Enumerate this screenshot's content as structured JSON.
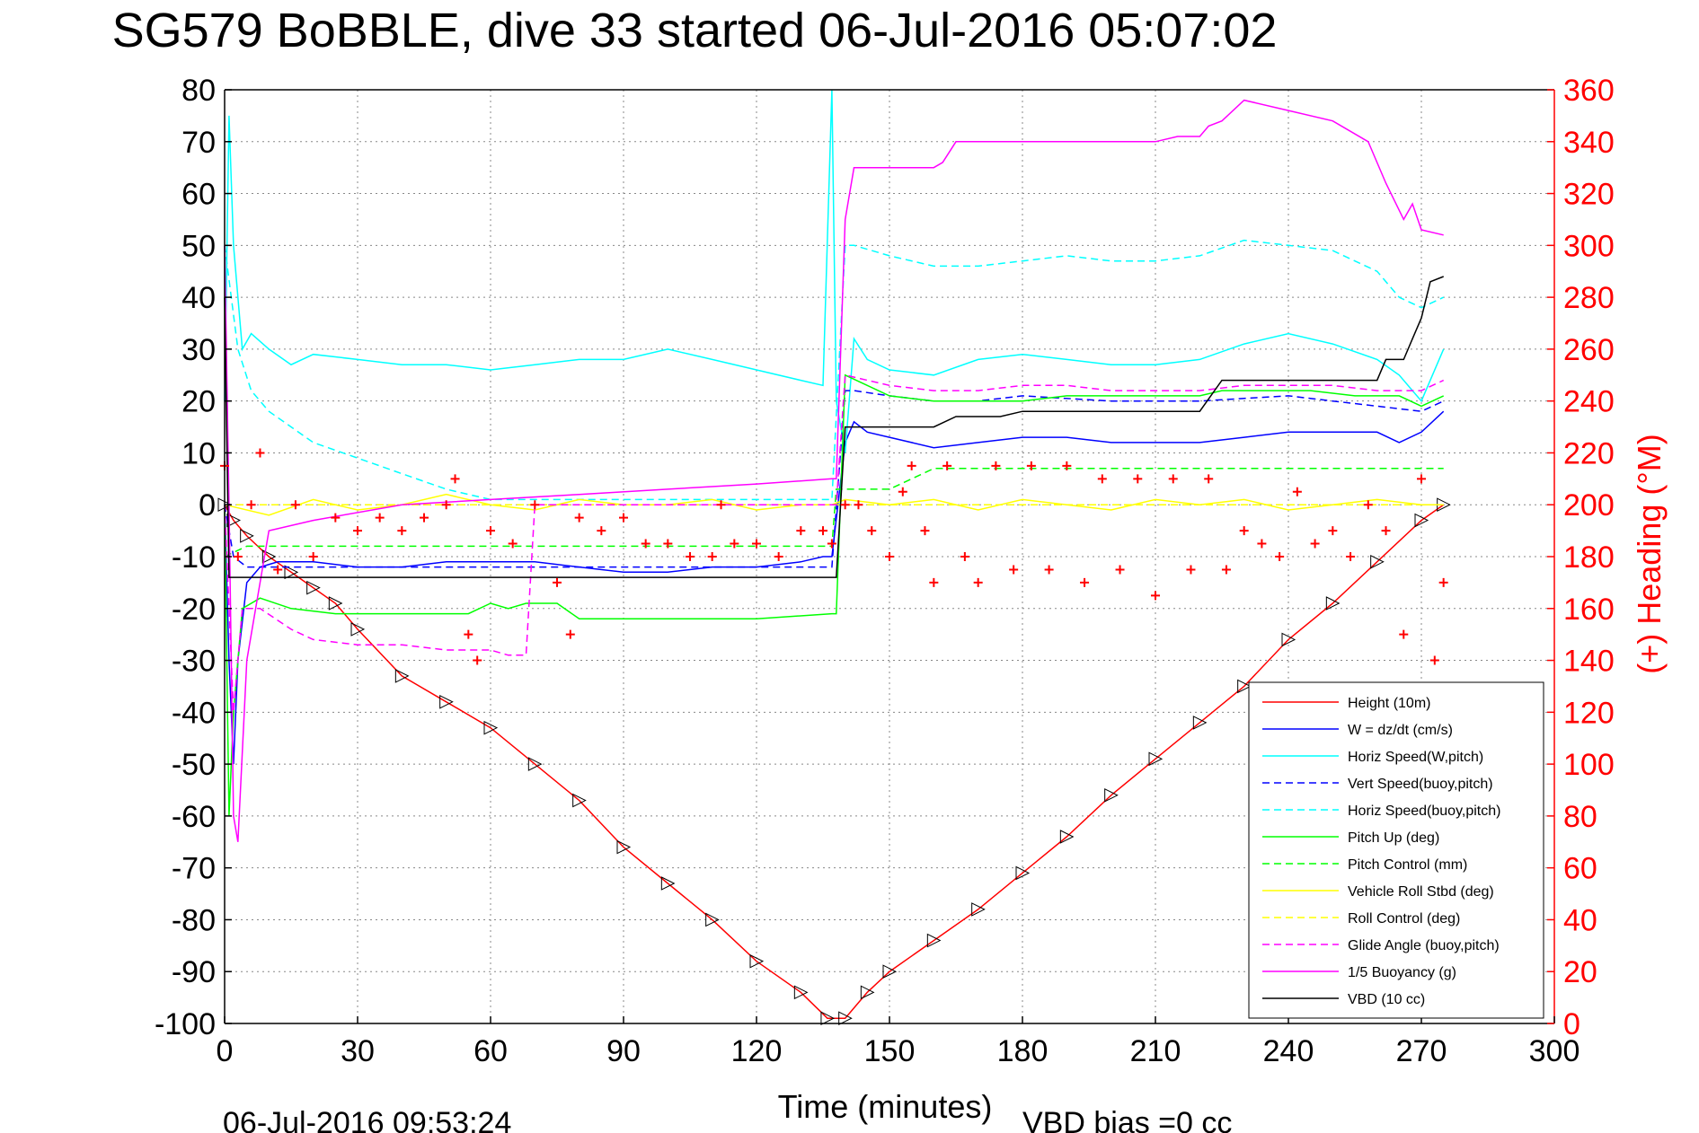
{
  "chart_data": {
    "type": "line",
    "title": "SG579 BoBBLE, dive 33 started 06-Jul-2016 05:07:02",
    "xlabel": "Time (minutes)",
    "ylabel": "",
    "y2label": "(+) Heading (°M)",
    "footer_left": "06-Jul-2016 09:53:24",
    "footer_right": "VBD bias =0 cc",
    "xlim": [
      0,
      300
    ],
    "ylim": [
      -100,
      80
    ],
    "y2lim": [
      0,
      360
    ],
    "xticks": [
      0,
      30,
      60,
      90,
      120,
      150,
      180,
      210,
      240,
      270,
      300
    ],
    "yticks": [
      -100,
      -90,
      -80,
      -70,
      -60,
      -50,
      -40,
      -30,
      -20,
      -10,
      0,
      10,
      20,
      30,
      40,
      50,
      60,
      70,
      80
    ],
    "y2ticks": [
      0,
      20,
      40,
      60,
      80,
      100,
      120,
      140,
      160,
      180,
      200,
      220,
      240,
      260,
      280,
      300,
      320,
      340,
      360
    ],
    "grid": true,
    "legend_position": "bottom-right",
    "colors": {
      "red": "#ff0000",
      "blue": "#0000ff",
      "cyan": "#00ffff",
      "green": "#00ff00",
      "yellow": "#ffff00",
      "magenta": "#ff00ff",
      "black": "#000000"
    },
    "series": [
      {
        "name": "Height (10m)",
        "color": "#ff0000",
        "style": "solid",
        "x": [
          0,
          2,
          5,
          10,
          15,
          20,
          25,
          30,
          40,
          50,
          60,
          70,
          80,
          90,
          100,
          110,
          120,
          130,
          136,
          140,
          145,
          150,
          160,
          170,
          180,
          190,
          200,
          210,
          220,
          230,
          240,
          250,
          260,
          270,
          275
        ],
        "y": [
          0,
          -3,
          -6,
          -10,
          -13,
          -16,
          -19,
          -24,
          -33,
          -38,
          -43,
          -50,
          -57,
          -66,
          -73,
          -80,
          -88,
          -94,
          -99,
          -99,
          -94,
          -90,
          -84,
          -78,
          -71,
          -64,
          -56,
          -49,
          -42,
          -35,
          -26,
          -19,
          -11,
          -3,
          0
        ]
      },
      {
        "name": "W = dz/dt (cm/s)",
        "color": "#0000ff",
        "style": "solid",
        "x": [
          0,
          1,
          2,
          3,
          5,
          8,
          12,
          20,
          30,
          40,
          50,
          60,
          70,
          80,
          90,
          100,
          110,
          120,
          130,
          135,
          137,
          140,
          142,
          145,
          150,
          160,
          170,
          180,
          190,
          200,
          210,
          220,
          230,
          240,
          250,
          260,
          265,
          270,
          275
        ],
        "y": [
          0,
          -30,
          -50,
          -30,
          -15,
          -12,
          -11,
          -11,
          -12,
          -12,
          -11,
          -11,
          -11,
          -12,
          -13,
          -13,
          -12,
          -12,
          -11,
          -10,
          -10,
          12,
          16,
          14,
          13,
          11,
          12,
          13,
          13,
          12,
          12,
          12,
          13,
          14,
          14,
          14,
          12,
          14,
          18
        ]
      },
      {
        "name": "Horiz Speed(W,pitch)",
        "color": "#00ffff",
        "style": "solid",
        "x": [
          0,
          1,
          2,
          4,
          6,
          10,
          15,
          20,
          30,
          40,
          50,
          60,
          70,
          80,
          90,
          100,
          110,
          120,
          130,
          135,
          137,
          138,
          140,
          142,
          145,
          150,
          160,
          170,
          180,
          190,
          200,
          210,
          220,
          230,
          240,
          250,
          260,
          265,
          270,
          275
        ],
        "y": [
          20,
          75,
          50,
          30,
          33,
          30,
          27,
          29,
          28,
          27,
          27,
          26,
          27,
          28,
          28,
          30,
          28,
          26,
          24,
          23,
          80,
          20,
          10,
          32,
          28,
          26,
          25,
          28,
          29,
          28,
          27,
          27,
          28,
          31,
          33,
          31,
          28,
          25,
          20,
          30
        ]
      },
      {
        "name": "Vert Speed(buoy,pitch)",
        "color": "#0000ff",
        "style": "dashed",
        "x": [
          0,
          2,
          5,
          10,
          20,
          40,
          60,
          80,
          100,
          120,
          137,
          140,
          142,
          150,
          160,
          170,
          180,
          200,
          220,
          240,
          250,
          260,
          270,
          275
        ],
        "y": [
          0,
          -10,
          -12,
          -12,
          -12,
          -12,
          -12,
          -12,
          -12,
          -12,
          -12,
          22,
          22,
          21,
          20,
          20,
          21,
          20,
          20,
          21,
          20,
          19,
          18,
          20
        ]
      },
      {
        "name": "Horiz Speed(buoy,pitch)",
        "color": "#00ffff",
        "style": "dashed",
        "x": [
          0,
          3,
          6,
          10,
          20,
          30,
          40,
          50,
          55,
          60,
          137,
          140,
          142,
          150,
          160,
          170,
          180,
          190,
          200,
          210,
          220,
          230,
          240,
          250,
          260,
          265,
          270,
          275
        ],
        "y": [
          50,
          30,
          22,
          18,
          12,
          9,
          6,
          3,
          2,
          1,
          1,
          50,
          50,
          48,
          46,
          46,
          47,
          48,
          47,
          47,
          48,
          51,
          50,
          49,
          45,
          40,
          38,
          40
        ]
      },
      {
        "name": "Pitch Up (deg)",
        "color": "#00ff00",
        "style": "solid",
        "x": [
          0,
          1,
          2,
          4,
          8,
          15,
          25,
          40,
          55,
          60,
          64,
          68,
          75,
          80,
          100,
          120,
          137,
          138,
          140,
          150,
          160,
          170,
          180,
          190,
          200,
          210,
          220,
          225,
          235,
          245,
          255,
          265,
          270,
          275
        ],
        "y": [
          0,
          -60,
          -40,
          -20,
          -18,
          -20,
          -21,
          -21,
          -21,
          -19,
          -20,
          -19,
          -19,
          -22,
          -22,
          -22,
          -21,
          -21,
          25,
          21,
          20,
          20,
          20,
          21,
          21,
          21,
          21,
          22,
          22,
          22,
          21,
          21,
          19,
          21
        ]
      },
      {
        "name": "Pitch Control (mm)",
        "color": "#00ff00",
        "style": "dashed",
        "x": [
          0,
          5,
          10,
          40,
          70,
          100,
          120,
          137,
          138,
          140,
          150,
          160,
          180,
          200,
          220,
          240,
          260,
          270,
          275
        ],
        "y": [
          -10,
          -8,
          -8,
          -8,
          -8,
          -8,
          -8,
          -8,
          3,
          3,
          3,
          7,
          7,
          7,
          7,
          7,
          7,
          7,
          7
        ]
      },
      {
        "name": "Vehicle Roll Stbd (deg)",
        "color": "#ffff00",
        "style": "solid",
        "x": [
          0,
          10,
          20,
          30,
          40,
          50,
          60,
          70,
          80,
          90,
          100,
          110,
          120,
          130,
          137,
          140,
          150,
          160,
          170,
          180,
          190,
          200,
          210,
          220,
          230,
          240,
          250,
          260,
          270,
          275
        ],
        "y": [
          0,
          -2,
          1,
          -1,
          0,
          2,
          0,
          -1,
          1,
          0,
          0,
          1,
          -1,
          0,
          0,
          1,
          0,
          1,
          -1,
          1,
          0,
          -1,
          1,
          0,
          1,
          -1,
          0,
          1,
          0,
          0
        ]
      },
      {
        "name": "Roll Control (deg)",
        "color": "#ffff00",
        "style": "dashed",
        "x": [
          0,
          10,
          20,
          30,
          40,
          50,
          60,
          70,
          80,
          90,
          100,
          110,
          120,
          130,
          137,
          140,
          150,
          160,
          170,
          180,
          190,
          200,
          210,
          220,
          230,
          240,
          250,
          260,
          270,
          275
        ],
        "y": [
          0,
          0,
          0,
          0,
          0,
          0,
          0,
          0,
          0,
          0,
          0,
          0,
          0,
          0,
          0,
          0,
          0,
          0,
          0,
          0,
          0,
          0,
          0,
          0,
          0,
          0,
          0,
          0,
          0,
          0
        ]
      },
      {
        "name": "Glide Angle (buoy,pitch)",
        "color": "#ff00ff",
        "style": "dashed",
        "x": [
          0,
          2,
          4,
          8,
          15,
          20,
          30,
          40,
          50,
          60,
          64,
          68,
          70,
          137,
          138,
          140,
          150,
          160,
          170,
          180,
          190,
          200,
          210,
          220,
          230,
          240,
          250,
          260,
          270,
          275
        ],
        "y": [
          0,
          -40,
          -20,
          -20,
          -24,
          -26,
          -27,
          -27,
          -28,
          -28,
          -29,
          -29,
          0,
          0,
          0,
          25,
          23,
          22,
          22,
          23,
          23,
          22,
          22,
          22,
          23,
          23,
          23,
          22,
          22,
          24
        ]
      },
      {
        "name": "1/5 Buoyancy (g)",
        "color": "#ff00ff",
        "style": "solid",
        "x": [
          0,
          1,
          2,
          3,
          5,
          10,
          20,
          40,
          60,
          80,
          100,
          120,
          137,
          138,
          140,
          142,
          150,
          155,
          160,
          162,
          165,
          170,
          180,
          190,
          200,
          210,
          215,
          220,
          222,
          225,
          230,
          240,
          250,
          258,
          262,
          266,
          268,
          270,
          275
        ],
        "y": [
          50,
          0,
          -60,
          -65,
          -30,
          -5,
          -3,
          0,
          1,
          2,
          3,
          4,
          5,
          5,
          55,
          65,
          65,
          65,
          65,
          66,
          70,
          70,
          70,
          70,
          70,
          70,
          71,
          71,
          73,
          74,
          78,
          76,
          74,
          70,
          62,
          55,
          58,
          53,
          52
        ]
      },
      {
        "name": "VBD (10 cc)",
        "color": "#000000",
        "style": "solid",
        "x": [
          0,
          1,
          2,
          3,
          20,
          40,
          60,
          80,
          100,
          120,
          137,
          138,
          140,
          145,
          160,
          165,
          170,
          175,
          180,
          190,
          200,
          210,
          220,
          225,
          240,
          250,
          260,
          262,
          266,
          268,
          270,
          272,
          275
        ],
        "y": [
          40,
          -14,
          -14,
          -14,
          -14,
          -14,
          -14,
          -14,
          -14,
          -14,
          -14,
          -14,
          15,
          15,
          15,
          17,
          17,
          17,
          18,
          18,
          18,
          18,
          18,
          24,
          24,
          24,
          24,
          28,
          28,
          32,
          36,
          43,
          44
        ]
      },
      {
        "name": "Heading",
        "axis": "right",
        "color": "#ff0000",
        "style": "plus",
        "x": [
          0,
          3,
          6,
          8,
          12,
          16,
          20,
          25,
          30,
          35,
          40,
          45,
          50,
          52,
          55,
          57,
          60,
          65,
          70,
          75,
          78,
          80,
          85,
          90,
          95,
          100,
          105,
          110,
          112,
          115,
          120,
          125,
          130,
          135,
          137,
          140,
          143,
          146,
          150,
          153,
          155,
          158,
          160,
          163,
          167,
          170,
          174,
          178,
          182,
          186,
          190,
          194,
          198,
          202,
          206,
          210,
          214,
          218,
          222,
          226,
          230,
          234,
          238,
          242,
          246,
          250,
          254,
          258,
          262,
          266,
          270,
          273,
          275
        ],
        "y": [
          215,
          180,
          200,
          220,
          175,
          200,
          180,
          195,
          190,
          195,
          190,
          195,
          200,
          210,
          150,
          140,
          190,
          185,
          200,
          170,
          150,
          195,
          190,
          195,
          185,
          185,
          180,
          180,
          200,
          185,
          185,
          180,
          190,
          190,
          185,
          200,
          200,
          190,
          180,
          205,
          215,
          190,
          170,
          215,
          180,
          170,
          215,
          175,
          215,
          175,
          215,
          170,
          210,
          175,
          210,
          165,
          210,
          175,
          210,
          175,
          190,
          185,
          180,
          205,
          185,
          190,
          180,
          200,
          190,
          150,
          210,
          140,
          170
        ]
      }
    ]
  }
}
